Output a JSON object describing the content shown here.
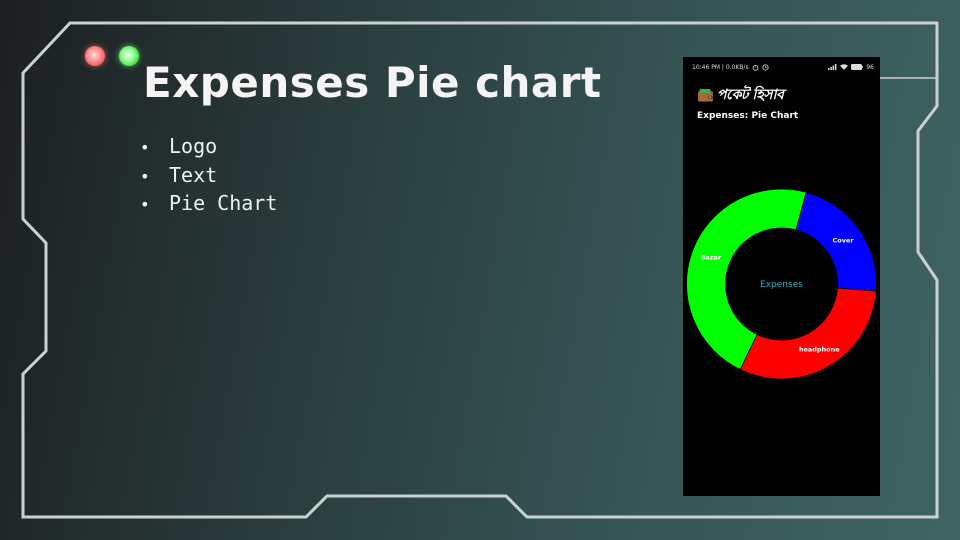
{
  "slide": {
    "title": "Expenses Pie chart",
    "bullets": [
      {
        "text": "Logo"
      },
      {
        "text": "Text"
      },
      {
        "text": "Pie Chart"
      }
    ],
    "bullet_symbol": "•",
    "window_dots": [
      {
        "name": "red-dot",
        "color": "#ff7b7b"
      },
      {
        "name": "green-dot",
        "color": "#7bff7b"
      }
    ],
    "frame_color": "#c9d2d2"
  },
  "phone": {
    "status_bar": {
      "left": "10:46 PM | 0.0KB/s",
      "battery": "96"
    },
    "app_name": "পকেট হিসাব",
    "logo_icon": "wallet-icon",
    "screen_title": "Expenses: Pie Chart",
    "chart_data": {
      "type": "pie",
      "center_label": "Expenses",
      "slices": [
        {
          "label": "Cover",
          "value": 22,
          "color": "#0000ff"
        },
        {
          "label": "headphone",
          "value": 31,
          "color": "#ff0000"
        },
        {
          "label": "Bazar",
          "value": 47,
          "color": "#00ff00"
        }
      ]
    }
  }
}
